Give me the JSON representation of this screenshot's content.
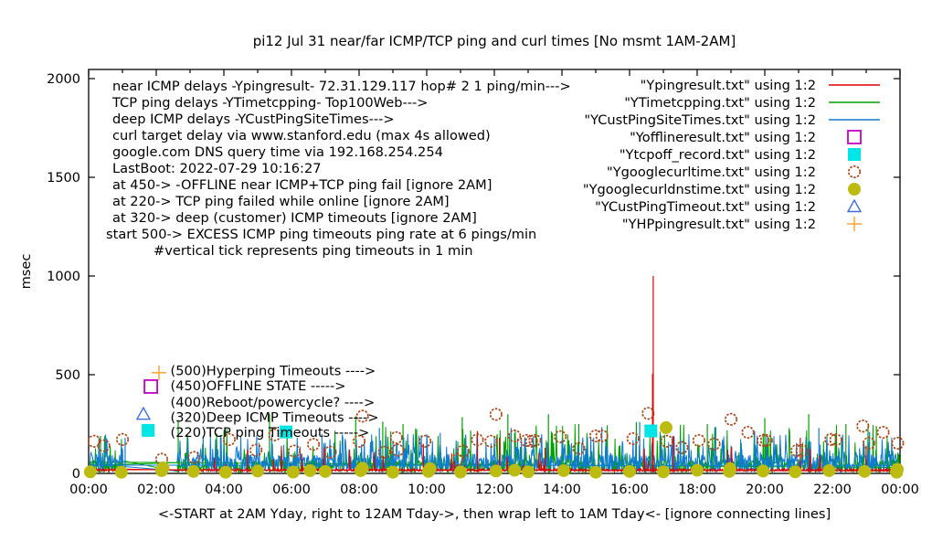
{
  "chart_data": {
    "type": "line",
    "title": "pi12 Jul 31  near/far ICMP/TCP ping and curl times [No msmt 1AM-2AM]",
    "xlabel": "<-START at 2AM Yday, right to 12AM Tday->, then wrap left to 1AM Tday<- [ignore connecting lines]",
    "ylabel": "msec",
    "xlim_hours": [
      0,
      24
    ],
    "ylim": [
      0,
      2046
    ],
    "y_ticks": [
      0,
      500,
      1000,
      1500,
      2000
    ],
    "x_ticks": [
      "00:00",
      "02:00",
      "04:00",
      "06:00",
      "08:00",
      "10:00",
      "12:00",
      "14:00",
      "16:00",
      "18:00",
      "20:00",
      "22:00",
      "00:00"
    ],
    "measurement_gap_hours": [
      1.05,
      2.6
    ],
    "grid": false,
    "info_lines": [
      {
        "x": 123,
        "text": "near ICMP delays -Ypingresult- 72.31.129.117 hop# 2 1 ping/min--->"
      },
      {
        "x": 123,
        "text": "TCP ping delays -YTimetcpping- Top100Web--->"
      },
      {
        "x": 123,
        "text": "deep ICMP delays -YCustPingSiteTimes--->"
      },
      {
        "x": 123,
        "text": "curl target delay via www.stanford.edu (max 4s allowed)"
      },
      {
        "x": 123,
        "text": "google.com DNS query time via 192.168.254.254"
      },
      {
        "x": 123,
        "text": "LastBoot: 2022-07-29 10:16:27"
      },
      {
        "x": 123,
        "text": "at 450-> -OFFLINE near ICMP+TCP ping fail [ignore 2AM]"
      },
      {
        "x": 123,
        "text": "at 220-> TCP ping failed while online [ignore 2AM]"
      },
      {
        "x": 123,
        "text": "at 320-> deep (customer) ICMP timeouts [ignore 2AM]"
      },
      {
        "x": 116,
        "text": "start 500-> EXCESS ICMP ping timeouts ping rate at 6 pings/min"
      },
      {
        "x": 168,
        "text": "#vertical tick represents ping timeouts in 1 min"
      }
    ],
    "legend": {
      "position": "top-right",
      "entries": [
        {
          "label": "\"Ypingresult.txt\" using 1:2",
          "marker": "line",
          "color": "#e10000"
        },
        {
          "label": "\"YTimetcpping.txt\" using 1:2",
          "marker": "line",
          "color": "#00a000"
        },
        {
          "label": "\"YCustPingSiteTimes.txt\" using 1:2",
          "marker": "line",
          "color": "#0f7ad2"
        },
        {
          "label": "\"Yofflineresult.txt\" using 1:2",
          "marker": "open-square",
          "color": "#c400c4"
        },
        {
          "label": "\"Ytcpoff_record.txt\" using 1:2",
          "marker": "filled-square",
          "color": "#00e6e6"
        },
        {
          "label": "\"Ygooglecurltime.txt\" using 1:2",
          "marker": "open-circle",
          "color": "#b04515"
        },
        {
          "label": "\"Ygooglecurldnstime.txt\" using 1:2",
          "marker": "filled-circle",
          "color": "#bcbc10"
        },
        {
          "label": "\"YCustPingTimeout.txt\" using 1:2",
          "marker": "open-triangle",
          "color": "#3c6ee0"
        },
        {
          "label": "\"YHPpingresult.txt\" using 1:2",
          "marker": "plus",
          "color": "#ffa83c"
        }
      ]
    },
    "annotations": [
      {
        "label": "(500)Hyperping Timeouts ---->",
        "marker": "plus",
        "color": "#ffa83c",
        "mx": 2.08,
        "my": 510,
        "tx": 2.42,
        "ty": 498
      },
      {
        "label": "(450)OFFLINE STATE ----->",
        "marker": "open-square",
        "color": "#c400c4",
        "mx": 1.84,
        "my": 440,
        "tx": 2.42,
        "ty": 421
      },
      {
        "label": "(400)Reboot/powercycle? ---->",
        "marker": "none",
        "color": "#000000",
        "mx": 0,
        "my": 0,
        "tx": 2.42,
        "ty": 339
      },
      {
        "label": "(320)Deep ICMP Timeouts ---->",
        "marker": "open-triangle",
        "color": "#3c6ee0",
        "mx": 1.62,
        "my": 300,
        "tx": 2.42,
        "ty": 262
      },
      {
        "label": "(220)TCP ping Timeouts ----->",
        "marker": "filled-square",
        "color": "#00e6e6",
        "mx": 1.76,
        "my": 218,
        "tx": 2.42,
        "ty": 185
      }
    ],
    "series": [
      {
        "name": "YTimetcpping",
        "desc": "TCP ping delays Top100Web",
        "color": "#00a000",
        "style": "noise-line",
        "noise": {
          "base": 2,
          "jitter": 68,
          "spike_prob": 0.13,
          "spike_min": 70,
          "spike_amp": 180,
          "seed": 22
        },
        "spikes": [
          [
            0.35,
            190
          ],
          [
            2.65,
            270
          ],
          [
            5.35,
            300
          ],
          [
            7.9,
            290
          ],
          [
            8.7,
            262
          ],
          [
            9.3,
            250
          ],
          [
            11.05,
            285
          ],
          [
            11.3,
            217
          ],
          [
            12.4,
            300
          ],
          [
            12.6,
            204
          ],
          [
            13.6,
            300
          ],
          [
            14.5,
            250
          ],
          [
            16.2,
            260
          ],
          [
            18.3,
            250
          ],
          [
            20.0,
            280
          ],
          [
            21.3,
            300
          ],
          [
            22.4,
            250
          ],
          [
            23.3,
            240
          ]
        ],
        "connectors": [
          [
            [
              1.04,
              63
            ],
            [
              2.65,
              9
            ]
          ],
          [
            [
              0.02,
              40
            ],
            [
              2.65,
              55
            ]
          ]
        ]
      },
      {
        "name": "YCustPingSiteTimes",
        "desc": "deep ICMP delays",
        "color": "#0f7ad2",
        "style": "noise-line",
        "noise": {
          "base": 5,
          "jitter": 92,
          "spike_prob": 0.24,
          "spike_min": 60,
          "spike_amp": 140,
          "seed": 33
        },
        "spikes": [
          [
            1.08,
            180
          ],
          [
            3.9,
            195
          ],
          [
            6.9,
            200
          ],
          [
            8.6,
            230
          ],
          [
            10.4,
            205
          ],
          [
            12.5,
            230
          ],
          [
            15.18,
            235
          ],
          [
            16.3,
            260
          ],
          [
            18.55,
            235
          ],
          [
            19.7,
            215
          ],
          [
            21.6,
            230
          ],
          [
            23.1,
            210
          ]
        ],
        "connectors": [
          [
            [
              1.04,
              35
            ],
            [
              2.65,
              12
            ]
          ]
        ]
      },
      {
        "name": "Ypingresult",
        "desc": "near ICMP delays 72.31.129.117",
        "color": "#e10000",
        "style": "noise-line",
        "noise": {
          "base": 10,
          "jitter": 14,
          "spike_prob": 0.02,
          "spike_min": 40,
          "spike_amp": 120,
          "seed": 11
        },
        "spikes": [
          [
            16.7,
            1000
          ],
          [
            16.68,
            505
          ],
          [
            11.5,
            215
          ],
          [
            12.15,
            180
          ],
          [
            13.5,
            130
          ],
          [
            17.3,
            190
          ],
          [
            21.05,
            180
          ],
          [
            4.7,
            120
          ],
          [
            23.0,
            140
          ],
          [
            9.9,
            150
          ],
          [
            18.9,
            120
          ],
          [
            6.3,
            100
          ]
        ],
        "connectors": [
          [
            [
              1.04,
              22
            ],
            [
              2.65,
              16
            ]
          ]
        ]
      },
      {
        "name": "Ygooglecurltime",
        "desc": "curl target delay via www.stanford.edu",
        "color": "#b04515",
        "style": "points",
        "marker": "open-circle",
        "points": [
          [
            0.16,
            163
          ],
          [
            0.45,
            140
          ],
          [
            1.0,
            172
          ],
          [
            2.16,
            72
          ],
          [
            3.12,
            81
          ],
          [
            4.16,
            172
          ],
          [
            4.95,
            118
          ],
          [
            5.5,
            195
          ],
          [
            6.08,
            113
          ],
          [
            6.65,
            147
          ],
          [
            7.15,
            108
          ],
          [
            8.0,
            163
          ],
          [
            8.1,
            290
          ],
          [
            8.75,
            108
          ],
          [
            9.1,
            181
          ],
          [
            9.14,
            118
          ],
          [
            9.95,
            163
          ],
          [
            10.9,
            68
          ],
          [
            11.08,
            113
          ],
          [
            11.5,
            170
          ],
          [
            11.9,
            163
          ],
          [
            12.05,
            299
          ],
          [
            12.6,
            190
          ],
          [
            12.95,
            167
          ],
          [
            13.1,
            163
          ],
          [
            13.2,
            167
          ],
          [
            13.95,
            186
          ],
          [
            14.5,
            127
          ],
          [
            15.0,
            190
          ],
          [
            15.18,
            190
          ],
          [
            16.1,
            176
          ],
          [
            16.55,
            304
          ],
          [
            17.1,
            163
          ],
          [
            17.55,
            131
          ],
          [
            18.05,
            167
          ],
          [
            18.5,
            149
          ],
          [
            19.0,
            274
          ],
          [
            19.5,
            208
          ],
          [
            19.95,
            167
          ],
          [
            20.05,
            167
          ],
          [
            20.95,
            116
          ],
          [
            21.1,
            116
          ],
          [
            21.95,
            172
          ],
          [
            22.1,
            170
          ],
          [
            22.9,
            240
          ],
          [
            23.08,
            153
          ],
          [
            23.5,
            208
          ],
          [
            23.93,
            153
          ]
        ]
      },
      {
        "name": "Ygooglecurldnstime",
        "desc": "google.com DNS query time via 192.168.254.254",
        "color": "#bcbc10",
        "style": "points",
        "marker": "filled-circle",
        "points": [
          [
            0.05,
            8
          ],
          [
            0.97,
            6
          ],
          [
            2.16,
            14
          ],
          [
            2.2,
            28
          ],
          [
            3.1,
            10
          ],
          [
            4.05,
            6
          ],
          [
            5.0,
            12
          ],
          [
            6.05,
            7
          ],
          [
            6.55,
            14
          ],
          [
            7.0,
            10
          ],
          [
            8.05,
            14
          ],
          [
            8.1,
            26
          ],
          [
            9.0,
            6
          ],
          [
            10.05,
            10
          ],
          [
            10.1,
            24
          ],
          [
            11.0,
            7
          ],
          [
            12.05,
            12
          ],
          [
            12.6,
            16
          ],
          [
            13.0,
            8
          ],
          [
            14.05,
            14
          ],
          [
            15.0,
            6
          ],
          [
            16.0,
            10
          ],
          [
            17.0,
            8
          ],
          [
            17.08,
            232
          ],
          [
            18.0,
            16
          ],
          [
            18.95,
            10
          ],
          [
            18.97,
            24
          ],
          [
            19.95,
            12
          ],
          [
            20.9,
            8
          ],
          [
            21.9,
            14
          ],
          [
            22.95,
            10
          ],
          [
            23.9,
            6
          ],
          [
            23.92,
            20
          ]
        ]
      },
      {
        "name": "Ytcpoff_record",
        "desc": "TCP ping timeouts while online",
        "color": "#00e6e6",
        "style": "points",
        "marker": "filled-square",
        "points": [
          [
            5.84,
            210
          ],
          [
            16.63,
            215
          ]
        ]
      },
      {
        "name": "Yofflineresult",
        "desc": "OFFLINE state",
        "color": "#c400c4",
        "style": "points",
        "marker": "open-square",
        "points": []
      },
      {
        "name": "YCustPingTimeout",
        "desc": "deep customer ICMP timeouts",
        "color": "#3c6ee0",
        "style": "points",
        "marker": "open-triangle",
        "points": []
      },
      {
        "name": "YHPpingresult",
        "desc": "excess ICMP ping timeouts",
        "color": "#ffa83c",
        "style": "points",
        "marker": "plus",
        "points": []
      }
    ]
  }
}
